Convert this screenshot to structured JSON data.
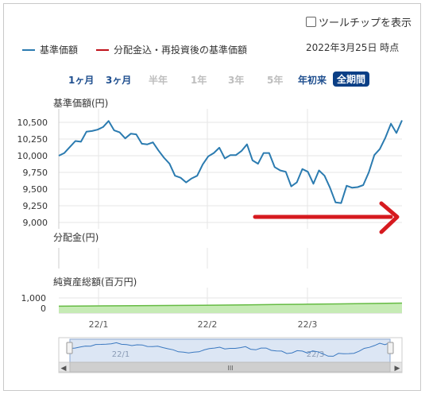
{
  "ui": {
    "tooltip_toggle_label": "ツールチップを表示",
    "as_of": "2022年3月25日 時点",
    "legend": [
      {
        "label": "基準価額",
        "color": "#2b7bb0"
      },
      {
        "label": "分配金込・再投資後の基準価額",
        "color": "#c0121b"
      }
    ],
    "periods": [
      {
        "label": "1ヶ月",
        "state": "enabled"
      },
      {
        "label": "3ヶ月",
        "state": "enabled"
      },
      {
        "label": "半年",
        "state": "disabled"
      },
      {
        "label": "1年",
        "state": "disabled"
      },
      {
        "label": "3年",
        "state": "disabled"
      },
      {
        "label": "5年",
        "state": "disabled"
      },
      {
        "label": "年初来",
        "state": "enabled"
      },
      {
        "label": "全期間",
        "state": "active"
      }
    ],
    "navigator_scroll_glyph": "III",
    "annotation_arrow_color": "#d61a1f"
  },
  "chart_data": [
    {
      "type": "line",
      "ylabel": "基準価額(円)",
      "ylim": [
        9000,
        10600
      ],
      "yticks": [
        "10,500",
        "10,250",
        "10,000",
        "9,750",
        "9,500",
        "9,250",
        "9,000"
      ],
      "ytick_values": [
        10500,
        10250,
        10000,
        9750,
        9500,
        9250,
        9000
      ],
      "xtick_labels": [
        "22/1",
        "22/2",
        "22/3"
      ],
      "grid": true,
      "series": [
        {
          "name": "基準価額",
          "color": "#2b7bb0",
          "values": [
            10000,
            10040,
            10130,
            10220,
            10210,
            10360,
            10370,
            10390,
            10430,
            10520,
            10380,
            10350,
            10260,
            10330,
            10320,
            10180,
            10170,
            10200,
            10080,
            9970,
            9880,
            9700,
            9670,
            9600,
            9660,
            9700,
            9870,
            9990,
            10040,
            10120,
            9960,
            10010,
            10010,
            10070,
            10170,
            9930,
            9880,
            10040,
            10040,
            9830,
            9780,
            9760,
            9540,
            9600,
            9800,
            9760,
            9580,
            9780,
            9700,
            9520,
            9300,
            9290,
            9550,
            9520,
            9530,
            9560,
            9750,
            10010,
            10100,
            10270,
            10480,
            10340,
            10530
          ]
        }
      ]
    },
    {
      "type": "bar",
      "ylabel": "分配金(円)",
      "grid": true
    },
    {
      "type": "area",
      "ylabel": "純資産総額(百万円)",
      "yticks": [
        "1,000",
        "0"
      ],
      "ytick_values": [
        1000,
        0
      ],
      "ylim": [
        0,
        1600
      ],
      "xtick_labels": [
        "22/1",
        "22/2",
        "22/3"
      ],
      "grid": true,
      "series": [
        {
          "color": "#66bb44",
          "fill": "#c6ebb5",
          "values": [
            200,
            220,
            240,
            260,
            280,
            300,
            330,
            360,
            390,
            420,
            460,
            500
          ]
        }
      ]
    }
  ]
}
